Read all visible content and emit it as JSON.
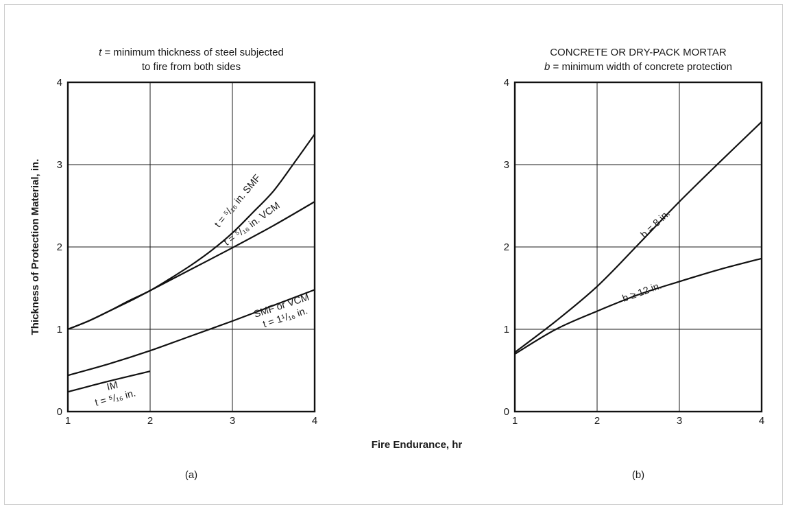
{
  "page": {
    "ylabel": "Thickness of Protection Material, in.",
    "xlabel": "Fire Endurance, hr"
  },
  "chart_data": [
    {
      "type": "line",
      "panel_label": "(a)",
      "title_lines": [
        "t = minimum thickness of steel subjected",
        "to fire from both sides"
      ],
      "title_italic_prefix": "t",
      "xlim": [
        1,
        4
      ],
      "ylim": [
        0,
        4
      ],
      "xticks": [
        "1",
        "2",
        "3",
        "4"
      ],
      "yticks": [
        "0",
        "1",
        "2",
        "3",
        "4"
      ],
      "grid": true,
      "series": [
        {
          "name": "t = 5/16 in. SMF",
          "x": [
            1,
            1.25,
            1.5,
            1.75,
            2,
            2.25,
            2.5,
            2.75,
            3,
            3.25,
            3.5,
            3.75,
            4
          ],
          "y": [
            1.0,
            1.1,
            1.22,
            1.35,
            1.47,
            1.62,
            1.78,
            1.96,
            2.17,
            2.42,
            2.68,
            3.02,
            3.37
          ]
        },
        {
          "name": "t = 5/16 in. VCM",
          "x": [
            1,
            1.25,
            1.5,
            1.75,
            2,
            2.5,
            3,
            3.5,
            4
          ],
          "y": [
            1.0,
            1.1,
            1.22,
            1.34,
            1.47,
            1.73,
            1.99,
            2.26,
            2.55
          ]
        },
        {
          "name": "SMF or VCM t = 1 1/16 in.",
          "x": [
            1,
            1.5,
            2,
            2.5,
            3,
            3.5,
            4
          ],
          "y": [
            0.44,
            0.58,
            0.74,
            0.92,
            1.1,
            1.29,
            1.48
          ]
        },
        {
          "name": "IM t = 5/16 in.",
          "x": [
            1,
            1.5,
            2
          ],
          "y": [
            0.24,
            0.37,
            0.49
          ]
        }
      ],
      "annotations": [
        {
          "series": 0,
          "text": "t = ⁵/₁₆ in. SMF"
        },
        {
          "series": 1,
          "text": "t = ⁵/₁₆ in. VCM"
        },
        {
          "series": 2,
          "text": "SMF or VCM"
        },
        {
          "series": 2,
          "text": "t = 1¹/₁₆ in."
        },
        {
          "series": 3,
          "text": "IM"
        },
        {
          "series": 3,
          "text": "t = ⁵/₁₆ in."
        }
      ]
    },
    {
      "type": "line",
      "panel_label": "(b)",
      "title_lines": [
        "CONCRETE OR DRY-PACK MORTAR",
        "b = minimum width of concrete protection"
      ],
      "title_italic_prefix": "b",
      "xlim": [
        1,
        4
      ],
      "ylim": [
        0,
        4
      ],
      "xticks": [
        "1",
        "2",
        "3",
        "4"
      ],
      "yticks": [
        "0",
        "1",
        "2",
        "3",
        "4"
      ],
      "grid": true,
      "series": [
        {
          "name": "b = 8 in.",
          "x": [
            1,
            1.5,
            2,
            2.5,
            3,
            3.5,
            4
          ],
          "y": [
            0.72,
            1.1,
            1.52,
            2.03,
            2.55,
            3.04,
            3.52
          ]
        },
        {
          "name": "b ≥ 12 in.",
          "x": [
            1,
            1.5,
            2,
            2.5,
            3,
            3.5,
            4
          ],
          "y": [
            0.7,
            1.0,
            1.22,
            1.42,
            1.58,
            1.73,
            1.86
          ]
        }
      ],
      "annotations": [
        {
          "series": 0,
          "text": "b = 8 in."
        },
        {
          "series": 1,
          "text": "b ≥ 12 in."
        }
      ]
    }
  ]
}
